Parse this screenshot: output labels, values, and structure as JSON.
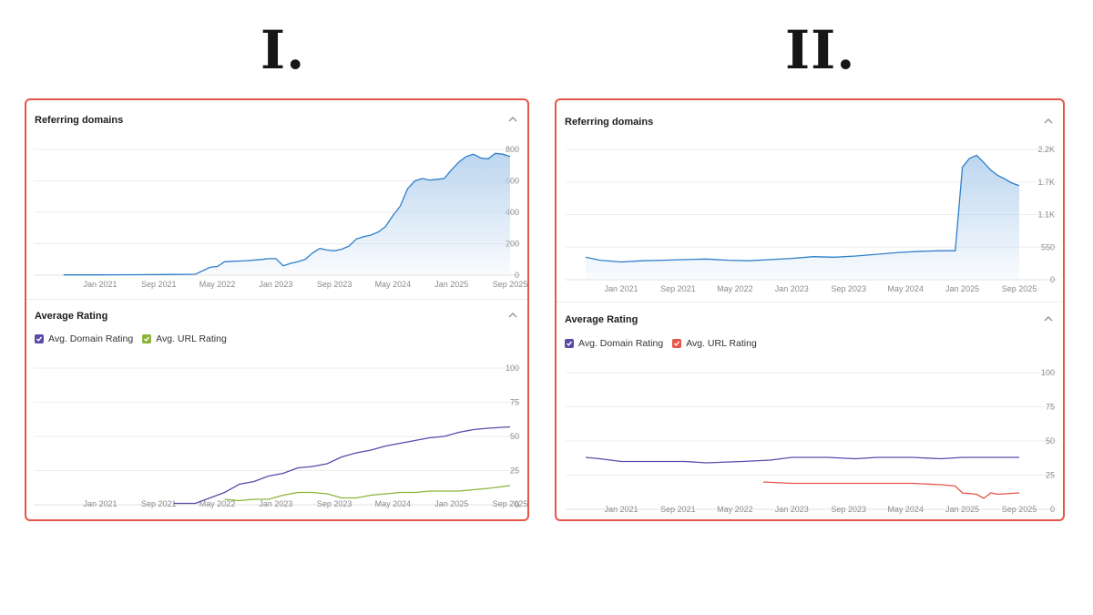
{
  "headings": [
    "I.",
    "II."
  ],
  "colors": {
    "border": "#e5554a",
    "referring_line": "#2f7fc9",
    "referring_fill": "#b9d4ef",
    "domain_rating": "#5b4aa8",
    "url_rating_I": "#8db33a",
    "url_rating_II": "#e5554a"
  },
  "panels": [
    {
      "referring": {
        "title": "Referring domains",
        "collapse_icon": "chevron-up-icon"
      },
      "rating": {
        "title": "Average Rating",
        "collapse_icon": "chevron-up-icon",
        "legend": [
          "Avg. Domain Rating",
          "Avg. URL Rating"
        ]
      }
    },
    {
      "referring": {
        "title": "Referring domains",
        "collapse_icon": "chevron-up-icon"
      },
      "rating": {
        "title": "Average Rating",
        "collapse_icon": "chevron-up-icon",
        "legend": [
          "Avg. Domain Rating",
          "Avg. URL Rating"
        ]
      }
    }
  ],
  "chart_data": [
    {
      "panel": "I.",
      "title": "Referring domains",
      "type": "area",
      "x_ticks": [
        "Jan 2021",
        "Sep 2021",
        "May 2022",
        "Jan 2023",
        "Sep 2023",
        "May 2024",
        "Jan 2025",
        "Sep 2025"
      ],
      "y_ticks": [
        "800",
        "600",
        "400",
        "200",
        "0"
      ],
      "ylim": [
        0,
        800
      ],
      "grid": true,
      "series": [
        {
          "x": [
            "2020-08",
            "2021-01",
            "2021-06",
            "2021-10",
            "2022-02",
            "2022-04",
            "2022-05",
            "2022-06",
            "2022-07",
            "2022-08",
            "2022-09",
            "2022-11",
            "2022-12",
            "2023-01",
            "2023-02",
            "2023-03",
            "2023-04",
            "2023-05",
            "2023-06",
            "2023-07",
            "2023-08",
            "2023-09",
            "2023-10",
            "2023-11",
            "2023-12",
            "2024-01",
            "2024-02",
            "2024-03",
            "2024-04",
            "2024-05",
            "2024-06",
            "2024-07",
            "2024-08",
            "2024-09",
            "2024-10",
            "2024-11",
            "2024-12",
            "2025-01",
            "2025-02",
            "2025-03",
            "2025-04",
            "2025-05",
            "2025-06",
            "2025-07",
            "2025-08",
            "2025-09"
          ],
          "values": [
            2,
            2,
            3,
            4,
            6,
            50,
            55,
            85,
            88,
            90,
            92,
            100,
            105,
            105,
            60,
            75,
            85,
            100,
            140,
            170,
            160,
            155,
            165,
            185,
            230,
            245,
            255,
            275,
            310,
            380,
            440,
            550,
            600,
            615,
            605,
            610,
            615,
            670,
            720,
            755,
            770,
            745,
            740,
            775,
            770,
            755
          ]
        }
      ]
    },
    {
      "panel": "I.",
      "title": "Average Rating",
      "type": "line",
      "x_ticks": [
        "Jan 2021",
        "Sep 2021",
        "May 2022",
        "Jan 2023",
        "Sep 2023",
        "May 2024",
        "Jan 2025",
        "Sep 2025"
      ],
      "y_ticks": [
        "100",
        "75",
        "50",
        "25",
        "0"
      ],
      "ylim": [
        0,
        100
      ],
      "grid": true,
      "legend": "top-left",
      "series": [
        {
          "name": "Avg. Domain Rating",
          "x": [
            "2021-11",
            "2022-02",
            "2022-04",
            "2022-06",
            "2022-08",
            "2022-10",
            "2022-12",
            "2023-02",
            "2023-04",
            "2023-06",
            "2023-08",
            "2023-10",
            "2023-12",
            "2024-02",
            "2024-04",
            "2024-06",
            "2024-08",
            "2024-10",
            "2024-12",
            "2025-02",
            "2025-04",
            "2025-06",
            "2025-09"
          ],
          "values": [
            1,
            1,
            5,
            9,
            15,
            17,
            21,
            23,
            27,
            28,
            30,
            35,
            38,
            40,
            43,
            45,
            47,
            49,
            50,
            53,
            55,
            56,
            57
          ]
        },
        {
          "name": "Avg. URL Rating",
          "x": [
            "2022-06",
            "2022-08",
            "2022-10",
            "2022-12",
            "2023-02",
            "2023-04",
            "2023-06",
            "2023-08",
            "2023-10",
            "2023-12",
            "2024-02",
            "2024-04",
            "2024-06",
            "2024-08",
            "2024-10",
            "2024-12",
            "2025-02",
            "2025-04",
            "2025-06",
            "2025-09"
          ],
          "values": [
            4,
            3,
            4,
            4,
            7,
            9,
            9,
            8,
            5,
            5,
            7,
            8,
            9,
            9,
            10,
            10,
            10,
            11,
            12,
            14
          ]
        }
      ]
    },
    {
      "panel": "II.",
      "title": "Referring domains",
      "type": "area",
      "x_ticks": [
        "Jan 2021",
        "Sep 2021",
        "May 2022",
        "Jan 2023",
        "Sep 2023",
        "May 2024",
        "Jan 2025",
        "Sep 2025"
      ],
      "y_ticks": [
        "2.2K",
        "1.7K",
        "1.1K",
        "550",
        "0"
      ],
      "ylim": [
        0,
        2200
      ],
      "grid": true,
      "series": [
        {
          "x": [
            "2020-08",
            "2020-10",
            "2021-01",
            "2021-04",
            "2021-07",
            "2021-10",
            "2022-01",
            "2022-04",
            "2022-07",
            "2022-10",
            "2023-01",
            "2023-04",
            "2023-07",
            "2023-10",
            "2024-01",
            "2024-04",
            "2024-07",
            "2024-10",
            "2024-12",
            "2025-01",
            "2025-02",
            "2025-03",
            "2025-04",
            "2025-05",
            "2025-06",
            "2025-07",
            "2025-08",
            "2025-09"
          ],
          "values": [
            380,
            330,
            300,
            320,
            330,
            340,
            350,
            330,
            320,
            340,
            360,
            390,
            380,
            400,
            430,
            460,
            480,
            490,
            490,
            1900,
            2050,
            2100,
            1980,
            1850,
            1760,
            1700,
            1630,
            1590
          ]
        }
      ]
    },
    {
      "panel": "II.",
      "title": "Average Rating",
      "type": "line",
      "x_ticks": [
        "Jan 2021",
        "Sep 2021",
        "May 2022",
        "Jan 2023",
        "Sep 2023",
        "May 2024",
        "Jan 2025",
        "Sep 2025"
      ],
      "y_ticks": [
        "100",
        "75",
        "50",
        "25",
        "0"
      ],
      "ylim": [
        0,
        100
      ],
      "grid": true,
      "legend": "top-left",
      "series": [
        {
          "name": "Avg. Domain Rating",
          "x": [
            "2020-08",
            "2020-10",
            "2021-01",
            "2021-06",
            "2021-10",
            "2022-01",
            "2022-06",
            "2022-10",
            "2023-01",
            "2023-06",
            "2023-10",
            "2024-01",
            "2024-06",
            "2024-10",
            "2025-01",
            "2025-06",
            "2025-09"
          ],
          "values": [
            38,
            37,
            35,
            35,
            35,
            34,
            35,
            36,
            38,
            38,
            37,
            38,
            38,
            37,
            38,
            38,
            38
          ]
        },
        {
          "name": "Avg. URL Rating",
          "x": [
            "2022-09",
            "2023-01",
            "2023-06",
            "2023-10",
            "2024-01",
            "2024-06",
            "2024-10",
            "2024-12",
            "2025-01",
            "2025-03",
            "2025-04",
            "2025-05",
            "2025-06",
            "2025-09"
          ],
          "values": [
            20,
            19,
            19,
            19,
            19,
            19,
            18,
            17,
            12,
            11,
            8,
            12,
            11,
            12
          ]
        }
      ]
    }
  ]
}
